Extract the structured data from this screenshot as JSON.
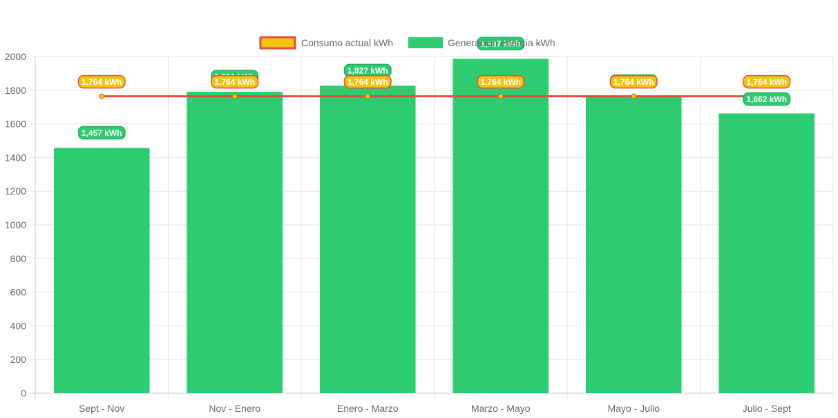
{
  "chart_data": {
    "type": "bar",
    "categories": [
      "Sept - Nov",
      "Nov - Enero",
      "Enero - Marzo",
      "Marzo - Mayo",
      "Mayo - Julio",
      "Julio - Sept"
    ],
    "series": [
      {
        "name": "Consumo actual kWh",
        "type": "line",
        "values": [
          1764,
          1764,
          1764,
          1764,
          1764,
          1764
        ],
        "labels": [
          "1,764 kWh",
          "1,764 kWh",
          "1,764 kWh",
          "1,764 kWh",
          "1,764 kWh",
          "1,764 kWh"
        ],
        "color": "#e74c3c",
        "fill_color": "#f1c40f"
      },
      {
        "name": "Generación energía kWh",
        "type": "bar",
        "values": [
          1457,
          1791,
          1827,
          1987,
          1764,
          1662
        ],
        "labels": [
          "1,457 kWh",
          "1,791 kWh",
          "1,827 kWh",
          "1,987 kWh",
          "1,764 kWh",
          "1,662 kWh"
        ],
        "color": "#2ecc71"
      }
    ],
    "yticks": [
      "0",
      "200",
      "400",
      "600",
      "800",
      "1000",
      "1200",
      "1400",
      "1600",
      "1800",
      "2000"
    ],
    "ylim": [
      0,
      2000
    ],
    "grid": true,
    "legend_position": "top-center"
  }
}
